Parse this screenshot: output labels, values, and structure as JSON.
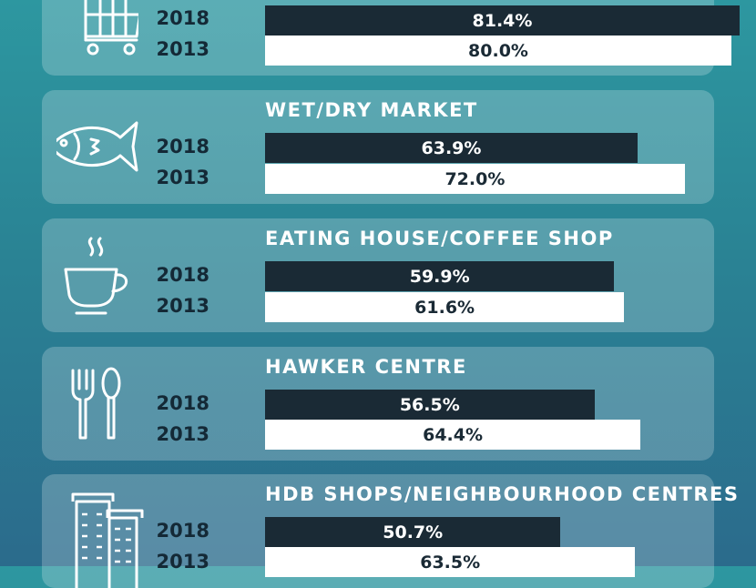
{
  "chart_data": {
    "type": "bar",
    "orientation": "horizontal",
    "unit": "%",
    "xlim": [
      0,
      100
    ],
    "years": [
      "2018",
      "2013"
    ],
    "colors": {
      "2018": "#1a2a35",
      "2013": "#ffffff"
    },
    "categories": [
      {
        "title": "",
        "icon": "shopping-cart-icon",
        "values": [
          81.4,
          80.0
        ],
        "labels": [
          "81.4%",
          "80.0%"
        ]
      },
      {
        "title": "WET/DRY MARKET",
        "icon": "fish-icon",
        "values": [
          63.9,
          72.0
        ],
        "labels": [
          "63.9%",
          "72.0%"
        ]
      },
      {
        "title": "EATING HOUSE/COFFEE SHOP",
        "icon": "coffee-cup-icon",
        "values": [
          59.9,
          61.6
        ],
        "labels": [
          "59.9%",
          "61.6%"
        ]
      },
      {
        "title": "HAWKER CENTRE",
        "icon": "fork-spoon-icon",
        "values": [
          56.5,
          64.4
        ],
        "labels": [
          "56.5%",
          "64.4%"
        ]
      },
      {
        "title": "HDB SHOPS/NEIGHBOURHOOD CENTRES",
        "icon": "buildings-icon",
        "values": [
          50.7,
          63.5
        ],
        "labels": [
          "50.7%",
          "63.5%"
        ]
      }
    ]
  }
}
